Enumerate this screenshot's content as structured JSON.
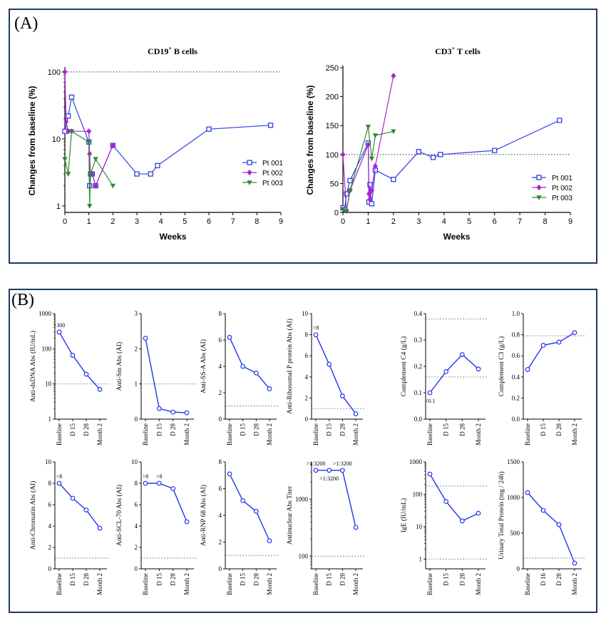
{
  "panel_labels": {
    "a": "(A)",
    "b": "(B)"
  },
  "chart_data": [
    {
      "id": "cd19",
      "type": "line",
      "title_main": "CD19",
      "title_sup": "+",
      "title_rest": " B cells",
      "xlabel": "Weeks",
      "ylabel": "Changes from baseline (%)",
      "xlim": [
        0,
        9
      ],
      "xticks": [
        "0",
        "1",
        "2",
        "3",
        "4",
        "5",
        "6",
        "7",
        "8",
        "9"
      ],
      "yscale": "log",
      "ylim": [
        0.8,
        110
      ],
      "yticks": [
        {
          "v": 1,
          "label": "1"
        },
        {
          "v": 10,
          "label": "10"
        },
        {
          "v": 100,
          "label": "100"
        }
      ],
      "ref_line": 100,
      "series": [
        {
          "name": "Pt 001",
          "color": "#2e3fe0",
          "marker": "square",
          "x": [
            0,
            0.14,
            0.28,
            1.0,
            1.03,
            1.07,
            1.14,
            1.28,
            2.0,
            3.0,
            3.57,
            3.86,
            6.0,
            8.57
          ],
          "y": [
            13,
            22,
            42,
            9,
            2,
            3,
            3,
            2,
            8,
            3,
            3,
            4,
            14,
            16
          ]
        },
        {
          "name": "Pt 002",
          "color": "#b020d0",
          "marker": "diamond",
          "x": [
            0,
            0.05,
            0.14,
            0.28,
            1.0,
            1.03,
            1.07,
            1.14,
            1.28,
            2.0
          ],
          "y": [
            100,
            18,
            13,
            13,
            13,
            6,
            3,
            3,
            2,
            8
          ]
        },
        {
          "name": "Pt 003",
          "color": "#2e8b2e",
          "marker": "triangle",
          "x": [
            0,
            0.14,
            0.28,
            1.0,
            1.03,
            1.07,
            1.28,
            2.0
          ],
          "y": [
            5,
            3,
            13,
            9,
            1,
            3,
            5,
            2
          ]
        }
      ]
    },
    {
      "id": "cd3",
      "type": "line",
      "title_main": "CD3",
      "title_sup": "+",
      "title_rest": " T cells",
      "xlabel": "Weeks",
      "ylabel": "Changes from baseline (%)",
      "xlim": [
        0,
        9
      ],
      "xticks": [
        "0",
        "1",
        "2",
        "3",
        "4",
        "5",
        "6",
        "7",
        "8",
        "9"
      ],
      "yscale": "linear",
      "ylim": [
        0,
        250
      ],
      "yticks": [
        {
          "v": 0,
          "label": "0"
        },
        {
          "v": 50,
          "label": "50"
        },
        {
          "v": 100,
          "label": "100"
        },
        {
          "v": 150,
          "label": "150"
        },
        {
          "v": 200,
          "label": "200"
        },
        {
          "v": 250,
          "label": "250"
        }
      ],
      "ref_line": 100,
      "series": [
        {
          "name": "Pt 001",
          "color": "#2e3fe0",
          "marker": "square",
          "x": [
            0,
            0.07,
            0.14,
            0.28,
            1.0,
            1.03,
            1.07,
            1.14,
            1.28,
            2.0,
            3.0,
            3.57,
            3.86,
            6.0,
            8.57
          ],
          "y": [
            8,
            5,
            32,
            55,
            120,
            18,
            48,
            15,
            73,
            57,
            105,
            95,
            100,
            107,
            159
          ]
        },
        {
          "name": "Pt 002",
          "color": "#b020d0",
          "marker": "diamond",
          "x": [
            0,
            0.14,
            0.28,
            1.0,
            1.03,
            1.07,
            1.14,
            1.28,
            2.0
          ],
          "y": [
            100,
            3,
            38,
            117,
            32,
            22,
            38,
            80,
            236
          ]
        },
        {
          "name": "Pt 003",
          "color": "#2e8b2e",
          "marker": "triangle",
          "x": [
            0,
            0.14,
            0.28,
            1.0,
            1.14,
            1.28,
            2.0
          ],
          "y": [
            5,
            2,
            38,
            148,
            93,
            133,
            140
          ]
        }
      ]
    },
    {
      "id": "dsdna",
      "type": "line",
      "ylabel": "Anti-dsDNA Abs (IU/mL)",
      "yscale": "log",
      "ylim": [
        1,
        1000
      ],
      "yticks": [
        {
          "v": 1,
          "label": "1"
        },
        {
          "v": 10,
          "label": "10"
        },
        {
          "v": 100,
          "label": "100"
        },
        {
          "v": 1000,
          "label": "1000"
        }
      ],
      "ref_line": 10,
      "categories": [
        "Baseline",
        "D 15",
        "D 28",
        "Month 2"
      ],
      "values": [
        300,
        65,
        19,
        7
      ],
      "annotations": [
        {
          "i": 0,
          "text": ">300"
        }
      ]
    },
    {
      "id": "sm",
      "type": "line",
      "ylabel": "Anti-Sm Abs (AI)",
      "yscale": "linear",
      "ylim": [
        0,
        3
      ],
      "yticks": [
        {
          "v": 0,
          "label": "0"
        },
        {
          "v": 1,
          "label": "1"
        },
        {
          "v": 2,
          "label": "2"
        },
        {
          "v": 3,
          "label": "3"
        }
      ],
      "ref_line": 1,
      "categories": [
        "Baseline",
        "D 15",
        "D 28",
        "Month 2"
      ],
      "values": [
        2.3,
        0.3,
        0.2,
        0.18
      ]
    },
    {
      "id": "ssa",
      "type": "line",
      "ylabel": "Anti-SS-A Abs (AI)",
      "yscale": "linear",
      "ylim": [
        0,
        8
      ],
      "yticks": [
        {
          "v": 0,
          "label": "0"
        },
        {
          "v": 2,
          "label": "2"
        },
        {
          "v": 4,
          "label": "4"
        },
        {
          "v": 6,
          "label": "6"
        },
        {
          "v": 8,
          "label": "8"
        }
      ],
      "ref_line": 1,
      "categories": [
        "Baseline",
        "D 15",
        "D 28",
        "Month 2"
      ],
      "values": [
        6.2,
        4.0,
        3.5,
        2.3
      ]
    },
    {
      "id": "ribo",
      "type": "line",
      "ylabel": "Anti-Ribosomal P protein Abs (AI)",
      "yscale": "linear",
      "ylim": [
        0,
        10
      ],
      "yticks": [
        {
          "v": 0,
          "label": "0"
        },
        {
          "v": 2,
          "label": "2"
        },
        {
          "v": 4,
          "label": "4"
        },
        {
          "v": 6,
          "label": "6"
        },
        {
          "v": 8,
          "label": "8"
        },
        {
          "v": 10,
          "label": "10"
        }
      ],
      "ref_line": 1,
      "categories": [
        "Baseline",
        "D 15",
        "D 28",
        "Month 2"
      ],
      "values": [
        8,
        5.2,
        2.2,
        0.5
      ],
      "annotations": [
        {
          "i": 0,
          "text": ">8"
        }
      ]
    },
    {
      "id": "c4",
      "type": "line",
      "ylabel": "Complement C4 (g/L)",
      "yscale": "linear",
      "ylim": [
        0,
        0.4
      ],
      "yticks": [
        {
          "v": 0,
          "label": "0.0"
        },
        {
          "v": 0.1,
          "label": "0.1"
        },
        {
          "v": 0.2,
          "label": "0.2"
        },
        {
          "v": 0.3,
          "label": "0.3"
        },
        {
          "v": 0.4,
          "label": "0.4"
        }
      ],
      "ref_lines": [
        0.16,
        0.38
      ],
      "categories": [
        "Baseline",
        "D 15",
        "D 28",
        "Month 2"
      ],
      "values": [
        0.1,
        0.18,
        0.245,
        0.19
      ],
      "annotations": [
        {
          "i": 0,
          "text": "<0.1",
          "below": true
        }
      ]
    },
    {
      "id": "c3",
      "type": "line",
      "ylabel": "Complement C3 (g/L)",
      "yscale": "linear",
      "ylim": [
        0,
        1.0
      ],
      "yticks": [
        {
          "v": 0,
          "label": "0.0"
        },
        {
          "v": 0.2,
          "label": "0.2"
        },
        {
          "v": 0.4,
          "label": "0.4"
        },
        {
          "v": 0.6,
          "label": "0.6"
        },
        {
          "v": 0.8,
          "label": "0.8"
        },
        {
          "v": 1.0,
          "label": "1.0"
        }
      ],
      "ref_line": 0.79,
      "categories": [
        "Baseline",
        "D 15",
        "D 28",
        "Month 2"
      ],
      "values": [
        0.47,
        0.7,
        0.73,
        0.82
      ]
    },
    {
      "id": "chromatin",
      "type": "line",
      "ylabel": "Anti-Chromatin Abs (AI)",
      "yscale": "linear",
      "ylim": [
        0,
        10
      ],
      "yticks": [
        {
          "v": 0,
          "label": "0"
        },
        {
          "v": 2,
          "label": "2"
        },
        {
          "v": 4,
          "label": "4"
        },
        {
          "v": 6,
          "label": "6"
        },
        {
          "v": 8,
          "label": "8"
        },
        {
          "v": 10,
          "label": "10"
        }
      ],
      "ref_line": 1,
      "categories": [
        "Baseline",
        "D 15",
        "D 28",
        "Month 2"
      ],
      "values": [
        8,
        6.6,
        5.5,
        3.8
      ],
      "annotations": [
        {
          "i": 0,
          "text": ">8"
        }
      ]
    },
    {
      "id": "scl70",
      "type": "line",
      "ylabel": "Anti-SCL-70 Abs (AI)",
      "yscale": "linear",
      "ylim": [
        0,
        10
      ],
      "yticks": [
        {
          "v": 0,
          "label": "0"
        },
        {
          "v": 2,
          "label": "2"
        },
        {
          "v": 4,
          "label": "4"
        },
        {
          "v": 6,
          "label": "6"
        },
        {
          "v": 8,
          "label": "8"
        },
        {
          "v": 10,
          "label": "10"
        }
      ],
      "ref_line": 1,
      "categories": [
        "Baseline",
        "D 15",
        "D 28",
        "Month 2"
      ],
      "values": [
        8,
        8,
        7.5,
        4.4
      ],
      "annotations": [
        {
          "i": 0,
          "text": ">8"
        },
        {
          "i": 1,
          "text": ">8"
        }
      ]
    },
    {
      "id": "rnp",
      "type": "line",
      "ylabel": "Anti-RNP 68 Abs (AI)",
      "yscale": "linear",
      "ylim": [
        0,
        8
      ],
      "yticks": [
        {
          "v": 0,
          "label": "0"
        },
        {
          "v": 2,
          "label": "2"
        },
        {
          "v": 4,
          "label": "4"
        },
        {
          "v": 6,
          "label": "6"
        },
        {
          "v": 8,
          "label": "8"
        }
      ],
      "ref_line": 1,
      "categories": [
        "Baseline",
        "D 15",
        "D 28",
        "Month 2"
      ],
      "values": [
        7.1,
        5.1,
        4.3,
        2.1
      ]
    },
    {
      "id": "ana",
      "type": "line",
      "ylabel": "Antinuclear Abs Titer",
      "yscale": "log",
      "ylim": [
        60,
        4500
      ],
      "yticks": [
        {
          "v": 100,
          "label": "100"
        },
        {
          "v": 1000,
          "label": "1000"
        }
      ],
      "ref_line": 100,
      "categories": [
        "Baseline",
        "D 15",
        "D 28",
        "Month 2"
      ],
      "values": [
        3200,
        3200,
        3200,
        320
      ],
      "annotations": [
        {
          "i": 0,
          "text": ">1:3200"
        },
        {
          "i": 1,
          "text": ">1:3200",
          "below": true
        },
        {
          "i": 2,
          "text": ">1:3200"
        }
      ]
    },
    {
      "id": "ige",
      "type": "line",
      "ylabel": "IgE (IU/mL)",
      "yscale": "log",
      "ylim": [
        0.5,
        1000
      ],
      "yticks": [
        {
          "v": 1,
          "label": "1"
        },
        {
          "v": 10,
          "label": "10"
        },
        {
          "v": 100,
          "label": "100"
        },
        {
          "v": 1000,
          "label": "1000"
        }
      ],
      "ref_lines": [
        1,
        180
      ],
      "categories": [
        "Baseline",
        "D 15",
        "D 28",
        "Month 2"
      ],
      "values": [
        420,
        60,
        15,
        26
      ]
    },
    {
      "id": "urine",
      "type": "line",
      "ylabel": "Urinary Total Protein (mg / 24h)",
      "yscale": "linear",
      "ylim": [
        0,
        1500
      ],
      "yticks": [
        {
          "v": 0,
          "label": "0"
        },
        {
          "v": 500,
          "label": "500"
        },
        {
          "v": 1000,
          "label": "1000"
        },
        {
          "v": 1500,
          "label": "1500"
        }
      ],
      "ref_line": 150,
      "categories": [
        "Baseline",
        "D 16",
        "D 28",
        "Month 2"
      ],
      "values": [
        1070,
        820,
        620,
        80
      ]
    }
  ]
}
